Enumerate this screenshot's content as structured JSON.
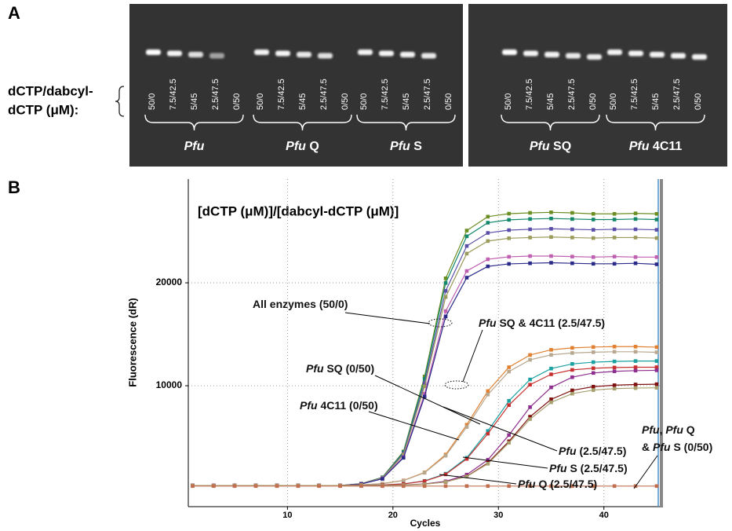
{
  "figure_a": {
    "panel_label": "A",
    "row_label": [
      "dCTP/dabcyl-",
      "dCTP (μM):"
    ],
    "panels": [
      {
        "lanes": [
          "50/0",
          "7.5/42.5",
          "5/45",
          "2.5/47.5",
          "0/50",
          "50/0",
          "7.5/42.5",
          "5/45",
          "2.5/47.5",
          "0/50",
          "50/0",
          "7.5/42.5",
          "5/45",
          "2.5/47.5",
          "0/50"
        ],
        "groups": [
          {
            "italic": "Pfu"
          },
          {
            "italic": "Pfu",
            "text": " Q"
          },
          {
            "italic": "Pfu",
            "text": " S"
          }
        ]
      },
      {
        "lanes": [
          "50/0",
          "7.5/42.5",
          "5/45",
          "2.5/47.5",
          "0/50",
          "50/0",
          "7.5/42.5",
          "5/45",
          "2.5/47.5",
          "0/50"
        ],
        "groups": [
          {
            "italic": "Pfu",
            "text": " SQ"
          },
          {
            "italic": "Pfu",
            "text": " 4C11"
          }
        ]
      }
    ]
  },
  "chart_data": {
    "type": "line",
    "panel_label": "B",
    "title": "[dCTP (μM)]/[dabcyl-dCTP (μM)]",
    "x_label": "Cycles",
    "y_label": "Fluorescence (dR)",
    "xlim": [
      0.6,
      45.6
    ],
    "ylim": [
      -1750,
      30080
    ],
    "xticks": [
      10,
      20,
      30,
      40
    ],
    "yticks": [
      10000,
      20000
    ],
    "grid": true,
    "x": [
      1,
      3,
      5,
      7,
      9,
      11,
      13,
      15,
      17,
      19,
      21,
      23,
      25,
      27,
      29,
      31,
      33,
      35,
      37,
      39,
      41,
      43,
      45
    ],
    "series": [
      {
        "color": "#6b8e23",
        "values": [
          300,
          300,
          300,
          300,
          300,
          300,
          300,
          300,
          490,
          1100,
          3610,
          10900,
          20440,
          25080,
          26430,
          26720,
          26800,
          26850,
          26800,
          26700,
          26700,
          26750,
          26700
        ]
      },
      {
        "color": "#12876a",
        "values": [
          300,
          300,
          300,
          300,
          300,
          300,
          300,
          300,
          480,
          1080,
          3540,
          10660,
          19980,
          24520,
          25840,
          26120,
          26200,
          26250,
          26200,
          26150,
          26150,
          26200,
          26150
        ]
      },
      {
        "color": "#5a4fa8",
        "values": [
          300,
          300,
          300,
          300,
          300,
          300,
          300,
          300,
          470,
          1050,
          3410,
          10260,
          19220,
          23580,
          24850,
          25120,
          25200,
          25250,
          25200,
          25150,
          25200,
          25200,
          25150
        ]
      },
      {
        "color": "#9a9a5a",
        "values": [
          300,
          300,
          300,
          300,
          300,
          300,
          300,
          300,
          470,
          1020,
          3310,
          9940,
          18620,
          22840,
          24060,
          24330,
          24400,
          24450,
          24400,
          24350,
          24400,
          24400,
          24350
        ]
      },
      {
        "color": "#c060b0",
        "values": [
          300,
          300,
          300,
          300,
          300,
          300,
          300,
          300,
          460,
          970,
          3090,
          9220,
          17250,
          21150,
          22290,
          22530,
          22600,
          22600,
          22550,
          22500,
          22550,
          22500,
          22500
        ]
      },
      {
        "color": "#2a2a8a",
        "values": [
          300,
          300,
          300,
          300,
          300,
          300,
          300,
          300,
          450,
          950,
          3000,
          8940,
          16720,
          20500,
          21600,
          21840,
          21900,
          21950,
          21900,
          21850,
          21850,
          21900,
          21800
        ]
      },
      {
        "color": "#e08030",
        "values": [
          300,
          300,
          300,
          300,
          300,
          300,
          300,
          300,
          370,
          490,
          800,
          1580,
          3310,
          6210,
          9480,
          11800,
          12990,
          13490,
          13680,
          13760,
          13800,
          13800,
          13750
        ]
      },
      {
        "color": "#b8a890",
        "values": [
          300,
          300,
          300,
          300,
          300,
          300,
          300,
          300,
          360,
          480,
          780,
          1540,
          3200,
          5990,
          9140,
          11380,
          12520,
          13000,
          13180,
          13260,
          13300,
          13300,
          13250
        ]
      },
      {
        "color": "#1aa0a0",
        "values": [
          300,
          300,
          300,
          300,
          300,
          300,
          300,
          300,
          320,
          360,
          470,
          750,
          1450,
          3000,
          5600,
          8530,
          10610,
          11670,
          12120,
          12290,
          12360,
          12400,
          12400
        ]
      },
      {
        "color": "#c83030",
        "values": [
          300,
          300,
          300,
          300,
          300,
          300,
          300,
          300,
          320,
          360,
          460,
          730,
          1390,
          2890,
          5340,
          8120,
          10100,
          11110,
          11540,
          11700,
          11770,
          11800,
          11800
        ]
      },
      {
        "color": "#8e2e8e",
        "values": [
          300,
          300,
          300,
          300,
          300,
          300,
          300,
          300,
          310,
          320,
          360,
          460,
          710,
          1360,
          2800,
          5210,
          7920,
          9840,
          10830,
          11240,
          11400,
          11470,
          11500
        ]
      },
      {
        "color": "#801010",
        "values": [
          300,
          300,
          300,
          300,
          300,
          300,
          300,
          300,
          310,
          320,
          350,
          440,
          650,
          1200,
          2500,
          4600,
          6990,
          8680,
          9550,
          9910,
          10050,
          10120,
          10150
        ]
      },
      {
        "color": "#a8a070",
        "values": [
          300,
          300,
          300,
          300,
          300,
          300,
          300,
          300,
          310,
          320,
          350,
          430,
          650,
          1170,
          2420,
          4460,
          6760,
          8390,
          9230,
          9580,
          9720,
          9770,
          9800
        ]
      },
      {
        "color": "#c07050",
        "values": [
          250,
          250,
          250,
          250,
          250,
          250,
          250,
          250,
          250,
          250,
          250,
          250,
          250,
          250,
          250,
          250,
          250,
          250,
          250,
          250,
          250,
          250,
          250
        ]
      }
    ],
    "annotations": [
      [
        {
          "text": "All enzymes (50/0)"
        }
      ],
      [
        {
          "text": "Pfu",
          "italic": true
        },
        {
          "text": " SQ & 4C11 (2.5/47.5)"
        }
      ],
      [
        {
          "text": "Pfu",
          "italic": true
        },
        {
          "text": " SQ (0/50)"
        }
      ],
      [
        {
          "text": "Pfu",
          "italic": true
        },
        {
          "text": " 4C11 (0/50)"
        }
      ],
      [
        {
          "text": "Pfu",
          "italic": true
        },
        {
          "text": " (2.5/47.5)"
        }
      ],
      [
        {
          "text": "Pfu",
          "italic": true
        },
        {
          "text": " S (2.5/47.5)"
        }
      ],
      [
        {
          "text": "Pfu",
          "italic": true
        },
        {
          "text": " Q (2.5/47.5)"
        }
      ],
      [
        {
          "text": "Pfu",
          "italic": true
        },
        {
          "text": ", "
        },
        {
          "text": "Pfu",
          "italic": true
        },
        {
          "text": " Q"
        }
      ],
      [
        {
          "text": "& "
        },
        {
          "text": "Pfu",
          "italic": true
        },
        {
          "text": " S (0/50)"
        }
      ]
    ]
  }
}
